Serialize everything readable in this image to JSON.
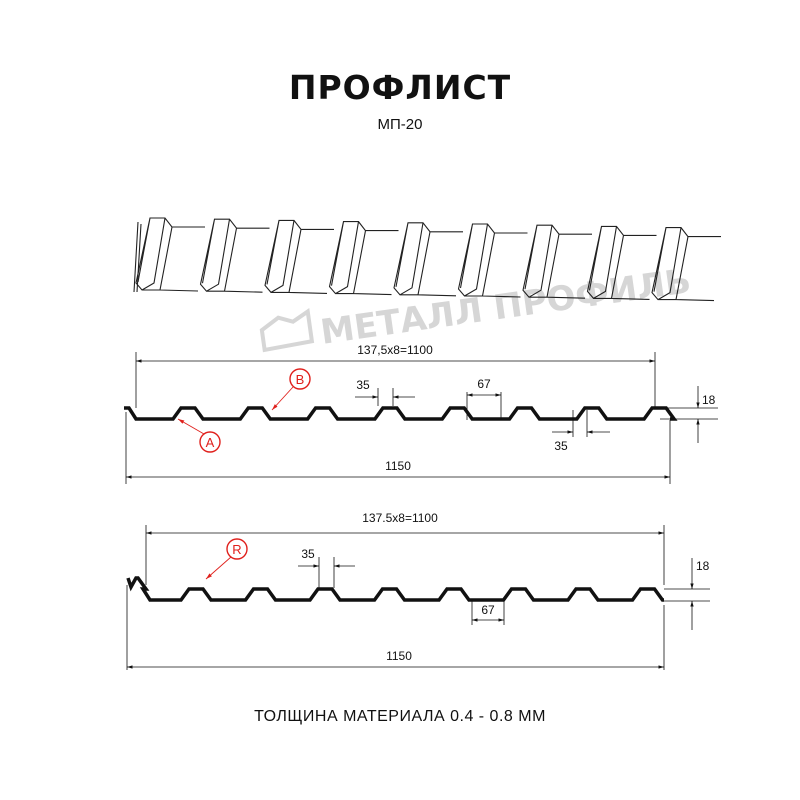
{
  "title": "ПРОФЛИСТ",
  "subtitle": "МП-20",
  "watermark": "МЕТАЛЛ ПРОФИЛЬ",
  "profile_a": {
    "pitch_label": "137,5x8=1100",
    "width_label": "1150",
    "rib_top_label": "35",
    "rib_bottom_label": "35",
    "trough_label": "67",
    "height_label": "18",
    "marker_a": "A",
    "marker_b": "B"
  },
  "profile_b": {
    "pitch_label": "137.5x8=1100",
    "width_label": "1150",
    "rib_top_label": "35",
    "trough_label": "67",
    "height_label": "18",
    "marker_r": "R"
  },
  "footer": "ТОЛЩИНА МАТЕРИАЛА 0.4 - 0.8 ММ",
  "colors": {
    "line": "#111111",
    "marker": "#e0201c",
    "watermark": "#d6d6d6"
  }
}
